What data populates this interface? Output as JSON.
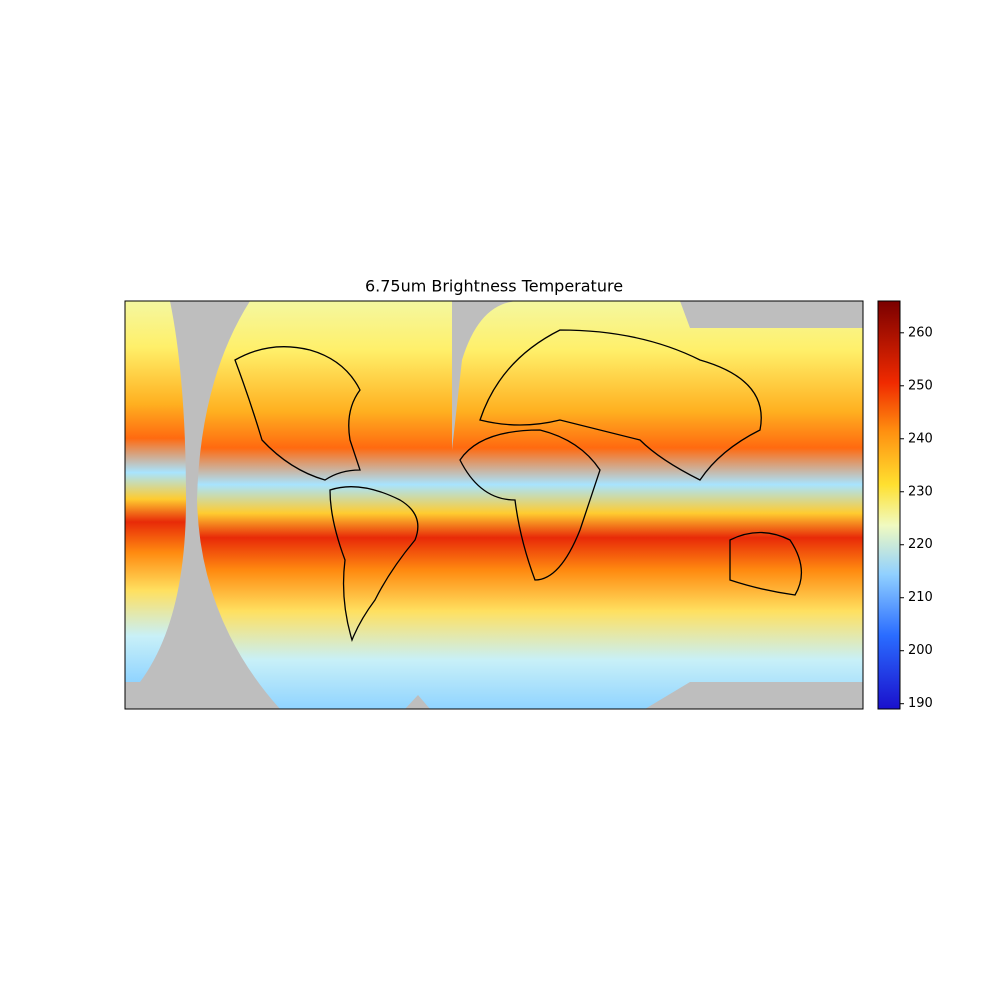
{
  "chart_data": {
    "type": "map",
    "title": "6.75um Brightness Temperature",
    "colorbar": {
      "ylim": [
        189,
        266
      ],
      "yticks": [
        190,
        200,
        210,
        220,
        230,
        240,
        250,
        260
      ]
    }
  }
}
